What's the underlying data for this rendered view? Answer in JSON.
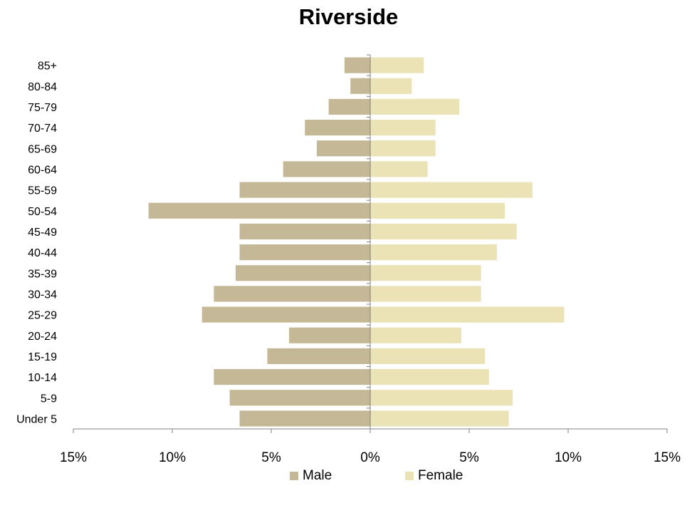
{
  "chart_data": {
    "type": "bar",
    "orientation": "horizontal",
    "title": "Riverside",
    "categories": [
      "85+",
      "80-84",
      "75-79",
      "70-74",
      "65-69",
      "60-64",
      "55-59",
      "50-54",
      "45-49",
      "40-44",
      "35-39",
      "30-34",
      "25-29",
      "20-24",
      "15-19",
      "10-14",
      "5-9",
      "Under 5"
    ],
    "series": [
      {
        "name": "Male",
        "color": "#c4b896",
        "values": [
          -1.3,
          -1.0,
          -2.1,
          -3.3,
          -2.7,
          -4.4,
          -6.6,
          -11.2,
          -6.6,
          -6.6,
          -6.8,
          -7.9,
          -8.5,
          -4.1,
          -5.2,
          -7.9,
          -7.1,
          -6.6
        ]
      },
      {
        "name": "Female",
        "color": "#ebe2b5",
        "values": [
          2.7,
          2.1,
          4.5,
          3.3,
          3.3,
          2.9,
          8.2,
          6.8,
          7.4,
          6.4,
          5.6,
          5.6,
          9.8,
          4.6,
          5.8,
          6.0,
          7.2,
          7.0
        ]
      }
    ],
    "xlim": [
      -15,
      15
    ],
    "xticks": [
      -15,
      -10,
      -5,
      0,
      5,
      10,
      15
    ],
    "xtick_labels": [
      "15%",
      "10%",
      "5%",
      "0%",
      "5%",
      "10%",
      "15%"
    ],
    "legend_position": "bottom",
    "grid": false
  }
}
